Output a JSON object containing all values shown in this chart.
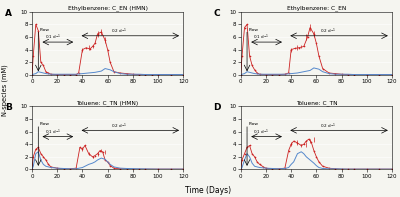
{
  "panels": [
    {
      "label": "A",
      "title": "Ethylbenzene: C_EN (HMN)"
    },
    {
      "label": "B",
      "title": "Toluene: C_TN (HMN)"
    },
    {
      "label": "C",
      "title": "Ethylbenzene: C_EN"
    },
    {
      "label": "D",
      "title": "Toluene: C_TN"
    }
  ],
  "xlim": [
    0,
    120
  ],
  "ylim": [
    0,
    10
  ],
  "yticks": [
    0,
    2,
    4,
    6,
    8,
    10
  ],
  "xticks": [
    0,
    20,
    40,
    60,
    80,
    100,
    120
  ],
  "xlabel": "Time (Days)",
  "ylabel": "N-species (mM)",
  "red_color": "#cc2222",
  "blue_color": "#5588cc",
  "bg_color": "#f5f5f0"
}
